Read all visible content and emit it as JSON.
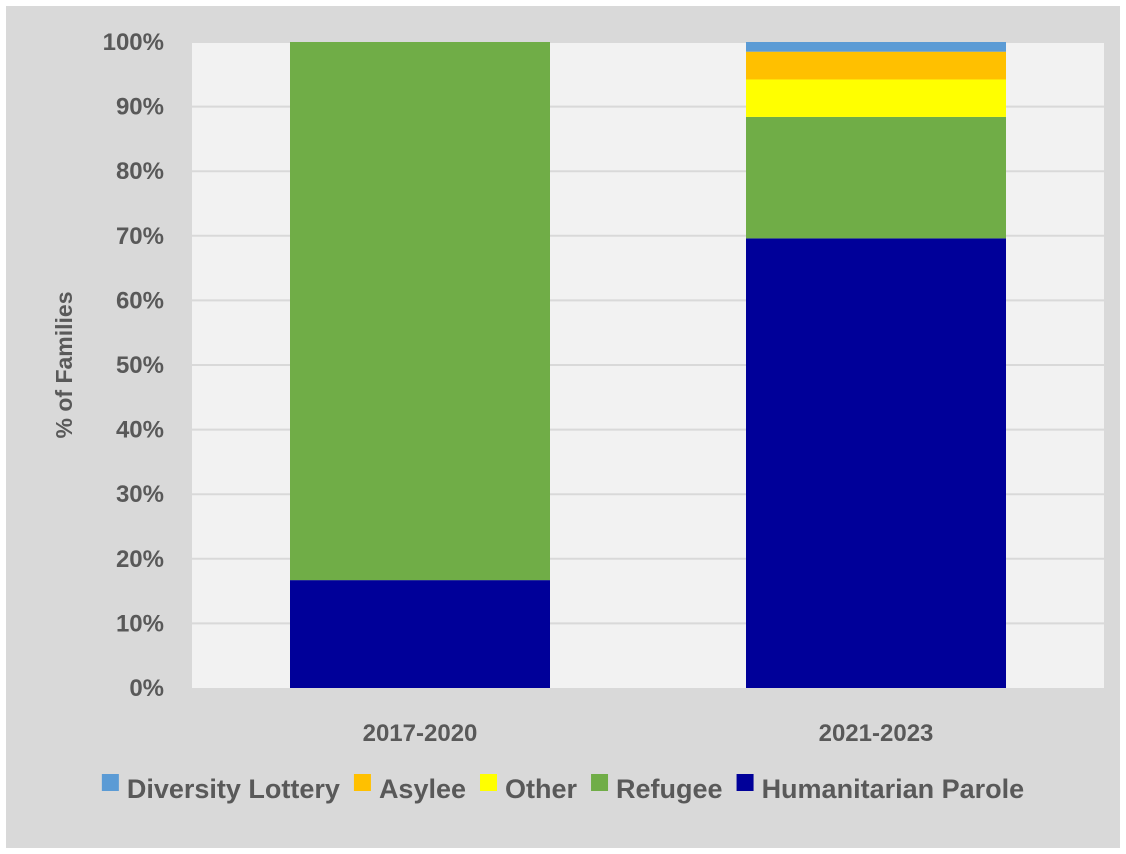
{
  "chart_data": {
    "type": "bar",
    "stacked": true,
    "title": "",
    "xlabel": "",
    "ylabel": "% of Families",
    "ylim": [
      0,
      100
    ],
    "y_ticks": [
      "0%",
      "10%",
      "20%",
      "30%",
      "40%",
      "50%",
      "60%",
      "70%",
      "80%",
      "90%",
      "100%"
    ],
    "categories": [
      "2017-2020",
      "2021-2023"
    ],
    "series": [
      {
        "name": "Humanitarian Parole",
        "color": "#000099",
        "values": [
          16.7,
          69.6
        ]
      },
      {
        "name": "Refugee",
        "color": "#70ad47",
        "values": [
          83.3,
          18.8
        ]
      },
      {
        "name": "Other",
        "color": "#ffff00",
        "values": [
          0,
          5.8
        ]
      },
      {
        "name": "Asylee",
        "color": "#ffc000",
        "values": [
          0,
          4.3
        ]
      },
      {
        "name": "Diversity Lottery",
        "color": "#5b9bd5",
        "values": [
          0,
          1.5
        ]
      }
    ],
    "legend_order": [
      "Diversity Lottery",
      "Asylee",
      "Other",
      "Refugee",
      "Humanitarian Parole"
    ],
    "legend_position": "bottom",
    "grid": true,
    "colors": {
      "frame_background": "#d9d9d9",
      "plot_background": "#f2f2f2",
      "gridline": "#d9d9d9",
      "text": "#595959"
    }
  }
}
